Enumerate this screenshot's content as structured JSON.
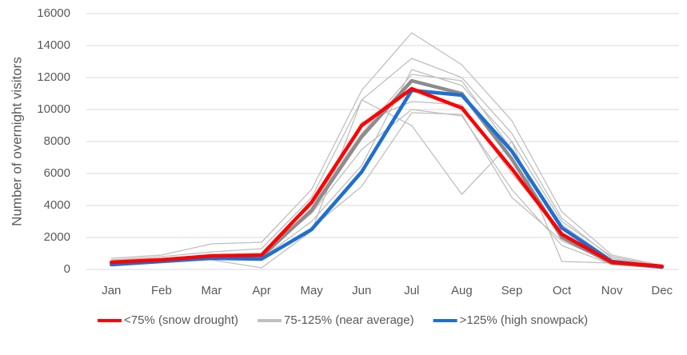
{
  "chart_data": {
    "type": "line",
    "ylabel": "Number of overnight  visitors",
    "categories": [
      "Jan",
      "Feb",
      "Mar",
      "Apr",
      "May",
      "Jun",
      "Jul",
      "Aug",
      "Sep",
      "Oct",
      "Nov",
      "Dec"
    ],
    "ylim": [
      0,
      16000
    ],
    "yticks": [
      0,
      2000,
      4000,
      6000,
      8000,
      10000,
      12000,
      14000,
      16000
    ],
    "grid": true,
    "legend": "bottom",
    "series": [
      {
        "name": "<75% (snow drought)",
        "color": "#ff0000",
        "values": [
          450,
          600,
          850,
          900,
          4200,
          9000,
          11300,
          10100,
          6300,
          2200,
          450,
          200
        ]
      },
      {
        "name": "75-125% (near average)",
        "color": "#bfbfbf",
        "lines": [
          [
            700,
            900,
            1600,
            1700,
            5000,
            11200,
            14800,
            12800,
            9300,
            3600,
            900,
            250
          ],
          [
            600,
            800,
            1100,
            1300,
            4500,
            10600,
            13200,
            12000,
            8500,
            3200,
            700,
            200
          ],
          [
            400,
            500,
            600,
            100,
            2400,
            10600,
            9000,
            4700,
            8000,
            500,
            400,
            150
          ],
          [
            500,
            600,
            800,
            900,
            3500,
            7500,
            10000,
            9600,
            5000,
            1500,
            300,
            150
          ],
          [
            400,
            600,
            700,
            700,
            3000,
            6500,
            12500,
            11500,
            8000,
            3000,
            800,
            200
          ],
          [
            600,
            700,
            900,
            1000,
            4000,
            8500,
            12200,
            11800,
            7500,
            2800,
            600,
            200
          ],
          [
            300,
            500,
            700,
            600,
            2600,
            5200,
            9800,
            9700,
            4500,
            1800,
            400,
            100
          ],
          [
            500,
            600,
            800,
            800,
            3800,
            9200,
            10500,
            10300,
            6000,
            2300,
            500,
            200
          ]
        ]
      },
      {
        "name": ">125% (high snowpack)",
        "color": "#1f6fd0",
        "values": [
          300,
          500,
          700,
          650,
          2500,
          6100,
          11200,
          10900,
          7400,
          2600,
          500,
          150
        ]
      },
      {
        "color": "#8c8c8c",
        "values": [
          400,
          550,
          750,
          800,
          3700,
          8300,
          11800,
          11000,
          6900,
          2000,
          400,
          150
        ]
      }
    ]
  }
}
